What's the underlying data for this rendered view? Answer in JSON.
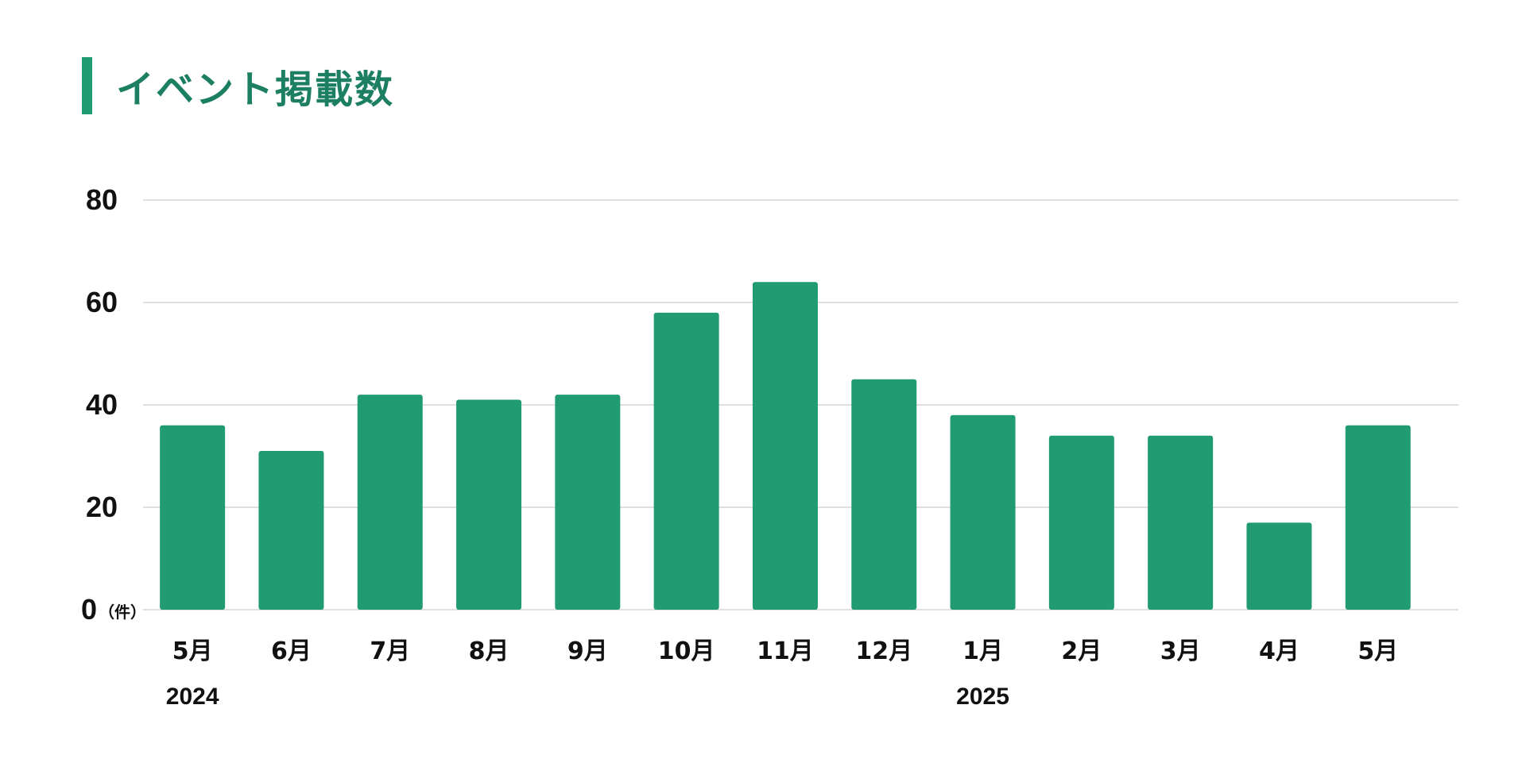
{
  "colors": {
    "accent": "#219B72",
    "title": "#1d7f62",
    "grid": "#cccccc",
    "text": "#111111"
  },
  "chart_data": {
    "type": "bar",
    "title": "イベント掲載数",
    "categories": [
      "5月",
      "6月",
      "7月",
      "8月",
      "9月",
      "10月",
      "11月",
      "12月",
      "1月",
      "2月",
      "3月",
      "4月",
      "5月"
    ],
    "values": [
      36,
      31,
      42,
      41,
      42,
      58,
      64,
      45,
      38,
      34,
      34,
      17,
      36
    ],
    "year_labels": [
      {
        "label": "2024",
        "category_index": 0
      },
      {
        "label": "2025",
        "category_index": 8
      }
    ],
    "y_unit": "（件）",
    "yticks": [
      0,
      20,
      40,
      60,
      80
    ],
    "ylim": [
      0,
      80
    ],
    "grid": true,
    "legend": "none"
  }
}
